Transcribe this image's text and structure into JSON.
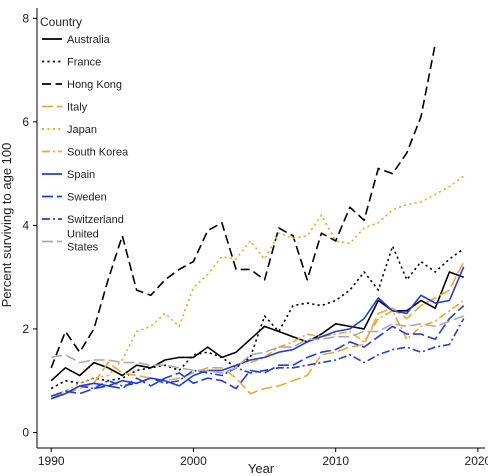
{
  "chart_data": {
    "type": "line",
    "title": "",
    "xlabel": "Year",
    "ylabel": "Percent surviving to age 100",
    "xlim": [
      1989,
      2020.5
    ],
    "ylim": [
      -0.3,
      8.2
    ],
    "x_ticks": [
      1990,
      2000,
      2010,
      2020
    ],
    "y_ticks": [
      0,
      2,
      4,
      6,
      8
    ],
    "legend": {
      "title": "Country",
      "position": "top-left"
    },
    "x": [
      1990,
      1991,
      1992,
      1993,
      1994,
      1995,
      1996,
      1997,
      1998,
      1999,
      2000,
      2001,
      2002,
      2003,
      2004,
      2005,
      2006,
      2007,
      2008,
      2009,
      2010,
      2011,
      2012,
      2013,
      2014,
      2015,
      2016,
      2017,
      2018,
      2019
    ],
    "series": [
      {
        "name": "Australia",
        "color": "#000000",
        "dash": "solid",
        "values": [
          1.0,
          1.25,
          1.1,
          1.35,
          1.25,
          1.1,
          1.3,
          1.25,
          1.4,
          1.45,
          1.45,
          1.65,
          1.45,
          1.55,
          1.8,
          2.05,
          1.95,
          1.85,
          1.75,
          1.9,
          2.1,
          2.05,
          2.0,
          2.55,
          2.35,
          2.35,
          2.55,
          2.4,
          3.1,
          3.0
        ]
      },
      {
        "name": "France",
        "color": "#000000",
        "dash": "dot",
        "values": [
          0.85,
          1.0,
          0.95,
          1.05,
          1.0,
          1.05,
          1.2,
          1.25,
          1.3,
          1.2,
          1.5,
          1.55,
          1.45,
          1.25,
          1.45,
          2.25,
          1.95,
          2.45,
          2.5,
          2.45,
          2.55,
          2.75,
          3.1,
          2.75,
          3.6,
          2.95,
          3.3,
          3.1,
          3.35,
          3.55
        ]
      },
      {
        "name": "Hong Kong",
        "color": "#000000",
        "dash": "dash",
        "values": [
          1.25,
          1.95,
          1.55,
          2.0,
          2.95,
          3.8,
          2.75,
          2.65,
          2.95,
          3.15,
          3.3,
          3.9,
          4.05,
          3.15,
          3.15,
          2.95,
          3.95,
          3.8,
          2.95,
          3.85,
          3.7,
          4.35,
          4.1,
          5.1,
          5.0,
          5.4,
          6.1,
          7.5,
          null,
          null
        ]
      },
      {
        "name": "Italy",
        "color": "#F0A830",
        "dash": "longdash",
        "values": [
          0.7,
          0.75,
          0.85,
          0.95,
          1.35,
          1.15,
          1.1,
          1.05,
          1.0,
          1.05,
          1.15,
          1.25,
          1.25,
          1.05,
          0.75,
          0.85,
          0.9,
          1.0,
          1.1,
          1.5,
          1.55,
          1.65,
          1.7,
          2.3,
          2.4,
          2.2,
          2.45,
          2.6,
          2.75,
          3.3
        ]
      },
      {
        "name": "Japan",
        "color": "#F0A830",
        "dash": "dot",
        "values": [
          0.7,
          0.8,
          0.95,
          1.05,
          1.1,
          1.4,
          1.95,
          2.05,
          2.3,
          2.05,
          2.8,
          3.05,
          3.4,
          3.35,
          3.7,
          3.35,
          3.85,
          3.75,
          3.8,
          4.2,
          3.7,
          3.65,
          3.95,
          4.05,
          4.3,
          4.4,
          4.45,
          4.6,
          4.75,
          4.95
        ]
      },
      {
        "name": "South Korea",
        "color": "#F0A830",
        "dash": "dashdot",
        "values": [
          null,
          null,
          null,
          null,
          null,
          null,
          null,
          null,
          null,
          null,
          null,
          null,
          null,
          null,
          1.35,
          1.45,
          1.65,
          1.75,
          1.9,
          1.85,
          1.9,
          1.95,
          1.75,
          2.2,
          2.35,
          1.8,
          2.05,
          2.15,
          2.35,
          2.55
        ]
      },
      {
        "name": "Spain",
        "color": "#1E3FD8",
        "dash": "solid",
        "values": [
          0.65,
          0.75,
          0.9,
          0.95,
          0.9,
          1.0,
          0.95,
          1.05,
          1.0,
          0.9,
          1.1,
          1.2,
          1.2,
          1.3,
          1.4,
          1.45,
          1.55,
          1.6,
          1.75,
          1.85,
          1.95,
          2.0,
          2.2,
          2.6,
          2.35,
          2.3,
          2.65,
          2.5,
          2.55,
          3.2
        ]
      },
      {
        "name": "Sweden",
        "color": "#1E3FD8",
        "dash": "longdash",
        "values": [
          0.7,
          0.8,
          0.75,
          0.85,
          0.9,
          0.85,
          1.05,
          0.9,
          1.05,
          1.15,
          0.95,
          1.05,
          1.0,
          0.85,
          1.2,
          1.15,
          1.3,
          1.3,
          1.45,
          1.55,
          1.6,
          1.75,
          1.65,
          1.85,
          2.05,
          1.9,
          1.9,
          1.8,
          2.2,
          2.45
        ]
      },
      {
        "name": "Switzerland",
        "color": "#1E3FD8",
        "dash": "dashdot",
        "values": [
          0.65,
          0.75,
          0.9,
          0.85,
          1.0,
          0.9,
          0.95,
          1.05,
          0.95,
          1.0,
          1.2,
          1.15,
          1.1,
          1.25,
          1.15,
          1.2,
          1.25,
          1.25,
          1.3,
          1.35,
          1.4,
          1.5,
          1.35,
          1.5,
          1.6,
          1.65,
          1.55,
          1.65,
          1.7,
          2.2
        ]
      },
      {
        "name": "United States",
        "color": "#AAAAAA",
        "dash": "longdash",
        "values": [
          1.45,
          1.5,
          1.35,
          1.4,
          1.4,
          1.35,
          1.35,
          1.3,
          1.3,
          1.25,
          1.2,
          1.2,
          1.15,
          1.25,
          1.5,
          1.55,
          1.65,
          1.65,
          1.8,
          1.8,
          1.85,
          1.85,
          1.95,
          1.95,
          2.1,
          2.05,
          2.1,
          2.05,
          2.15,
          2.25
        ]
      }
    ]
  }
}
